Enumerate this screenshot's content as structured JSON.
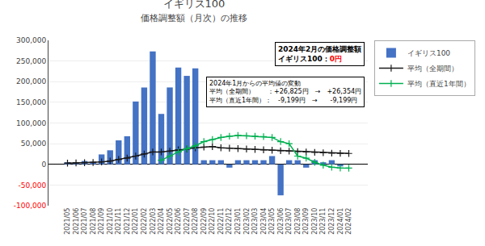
{
  "chart_data": {
    "type": "bar",
    "title": "イギリス100",
    "subtitle": "価格調整額（月次）の推移",
    "categories": [
      "2021/05",
      "2021/06",
      "2021/07",
      "2021/08",
      "2021/09",
      "2021/10",
      "2021/11",
      "2021/12",
      "2022/01",
      "2022/02",
      "2022/03",
      "2022/04",
      "2022/05",
      "2022/06",
      "2022/07",
      "2022/08",
      "2022/09",
      "2022/10",
      "2022/11",
      "2022/12",
      "2023/01",
      "2023/02",
      "2023/03",
      "2023/04",
      "2023/05",
      "2023/06",
      "2023/07",
      "2023/08",
      "2023/09",
      "2023/10",
      "2023/11",
      "2023/12",
      "2024/01",
      "2024/02"
    ],
    "series": [
      {
        "name": "イギリス100",
        "type": "bar",
        "color": "#4472C4",
        "values": [
          5000,
          5000,
          8000,
          6000,
          24000,
          34000,
          58000,
          68000,
          152000,
          186000,
          273000,
          122000,
          186000,
          234000,
          214000,
          232000,
          10000,
          10000,
          10000,
          -8000,
          10000,
          10000,
          10000,
          10000,
          20000,
          -75000,
          10000,
          10000,
          -8000,
          10000,
          5000,
          10000,
          -5000,
          0
        ]
      },
      {
        "name": "平均（全期間）",
        "type": "line",
        "color": "#1a1a1a",
        "marker": "plus",
        "values": [
          3000,
          3500,
          4000,
          4500,
          6000,
          8000,
          12000,
          15000,
          20000,
          25000,
          30000,
          30000,
          32000,
          35000,
          37000,
          40000,
          42000,
          43000,
          40000,
          39000,
          38000,
          37000,
          36000,
          35000,
          34000,
          33000,
          32000,
          31000,
          30000,
          29000,
          28000,
          27000,
          26500,
          26354
        ]
      },
      {
        "name": "平均（直近1年間）",
        "type": "line",
        "color": "#00B050",
        "marker": "plus",
        "values": [
          null,
          null,
          null,
          null,
          null,
          null,
          null,
          null,
          null,
          null,
          null,
          10000,
          20000,
          30000,
          38000,
          45000,
          55000,
          60000,
          65000,
          68000,
          70000,
          69000,
          68000,
          67000,
          65000,
          55000,
          50000,
          20000,
          15000,
          5000,
          -2000,
          -7000,
          -9000,
          -9199
        ]
      }
    ],
    "ylim": [
      -100000,
      300000
    ],
    "yticks": [
      {
        "value": -100000,
        "label": "-100,000"
      },
      {
        "value": -50000,
        "label": "-50,000"
      },
      0,
      {
        "value": 50000,
        "label": "50,000"
      },
      {
        "value": 100000,
        "label": "100,000"
      },
      {
        "value": 150000,
        "label": "150,000"
      },
      {
        "value": 200000,
        "label": "200,000"
      },
      {
        "value": 250000,
        "label": "250,000"
      },
      {
        "value": 300000,
        "label": "300,000"
      }
    ],
    "grid": true,
    "legend": "right",
    "annotations": [
      [
        [
          "2024年2月の価格調整額"
        ],
        [
          "イギリス100：",
          {
            "text": "0円",
            "color": "red"
          }
        ]
      ],
      [
        [
          "2024年1月からの平均値の変動"
        ],
        [
          "平均（全期間）　　：+26,825円　→　+26,354円"
        ],
        [
          "平均（直近1年間）：　-9,199円　→　　-9,199円"
        ]
      ]
    ]
  }
}
